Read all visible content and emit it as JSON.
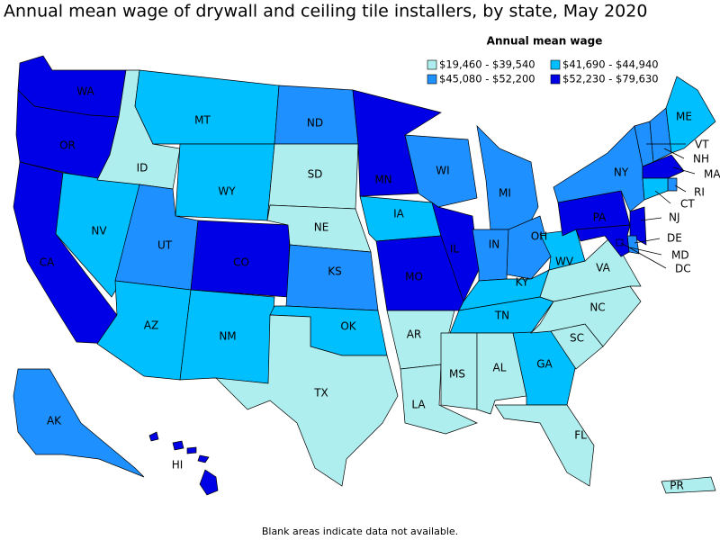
{
  "title": "Annual mean wage of drywall and ceiling tile installers, by state, May 2020",
  "legend": {
    "title": "Annual mean wage",
    "items": [
      {
        "label": "$19,460 - $39,540",
        "color": "#afeeee"
      },
      {
        "label": "$41,690 - $44,940",
        "color": "#00bfff"
      },
      {
        "label": "$45,080 - $52,200",
        "color": "#1e90ff"
      },
      {
        "label": "$52,230 - $79,630",
        "color": "#0000e6"
      }
    ]
  },
  "states": [
    {
      "label": "WA",
      "color": "#0000e6"
    },
    {
      "label": "OR",
      "color": "#0000e6"
    },
    {
      "label": "CA",
      "color": "#0000e6"
    },
    {
      "label": "NV",
      "color": "#00bfff"
    },
    {
      "label": "ID",
      "color": "#afeeee"
    },
    {
      "label": "MT",
      "color": "#00bfff"
    },
    {
      "label": "WY",
      "color": "#00bfff"
    },
    {
      "label": "UT",
      "color": "#1e90ff"
    },
    {
      "label": "AZ",
      "color": "#00bfff"
    },
    {
      "label": "CO",
      "color": "#0000e6"
    },
    {
      "label": "NM",
      "color": "#00bfff"
    },
    {
      "label": "ND",
      "color": "#1e90ff"
    },
    {
      "label": "SD",
      "color": "#afeeee"
    },
    {
      "label": "NE",
      "color": "#afeeee"
    },
    {
      "label": "KS",
      "color": "#1e90ff"
    },
    {
      "label": "OK",
      "color": "#00bfff"
    },
    {
      "label": "TX",
      "color": "#afeeee"
    },
    {
      "label": "MN",
      "color": "#0000e6"
    },
    {
      "label": "IA",
      "color": "#00bfff"
    },
    {
      "label": "MO",
      "color": "#0000e6"
    },
    {
      "label": "AR",
      "color": "#afeeee"
    },
    {
      "label": "LA",
      "color": "#afeeee"
    },
    {
      "label": "WI",
      "color": "#1e90ff"
    },
    {
      "label": "IL",
      "color": "#0000e6"
    },
    {
      "label": "MI",
      "color": "#1e90ff"
    },
    {
      "label": "IN",
      "color": "#1e90ff"
    },
    {
      "label": "OH",
      "color": "#1e90ff"
    },
    {
      "label": "KY",
      "color": "#00bfff"
    },
    {
      "label": "TN",
      "color": "#00bfff"
    },
    {
      "label": "MS",
      "color": "#afeeee"
    },
    {
      "label": "AL",
      "color": "#afeeee"
    },
    {
      "label": "GA",
      "color": "#00bfff"
    },
    {
      "label": "FL",
      "color": "#afeeee"
    },
    {
      "label": "SC",
      "color": "#afeeee"
    },
    {
      "label": "NC",
      "color": "#afeeee"
    },
    {
      "label": "VA",
      "color": "#afeeee"
    },
    {
      "label": "WV",
      "color": "#00bfff"
    },
    {
      "label": "PA",
      "color": "#0000e6"
    },
    {
      "label": "NY",
      "color": "#1e90ff"
    },
    {
      "label": "NJ",
      "color": "#0000e6"
    },
    {
      "label": "DE",
      "color": "#1e90ff"
    },
    {
      "label": "MD",
      "color": "#0000e6"
    },
    {
      "label": "DC",
      "color": "#0000e6"
    },
    {
      "label": "VT",
      "color": "#1e90ff"
    },
    {
      "label": "NH",
      "color": "#1e90ff"
    },
    {
      "label": "ME",
      "color": "#00bfff"
    },
    {
      "label": "MA",
      "color": "#0000e6"
    },
    {
      "label": "RI",
      "color": "#1e90ff"
    },
    {
      "label": "CT",
      "color": "#00bfff"
    },
    {
      "label": "AK",
      "color": "#1e90ff"
    },
    {
      "label": "HI",
      "color": "#0000e6"
    },
    {
      "label": "PR",
      "color": "#afeeee"
    }
  ],
  "footnote": "Blank areas indicate data not available."
}
